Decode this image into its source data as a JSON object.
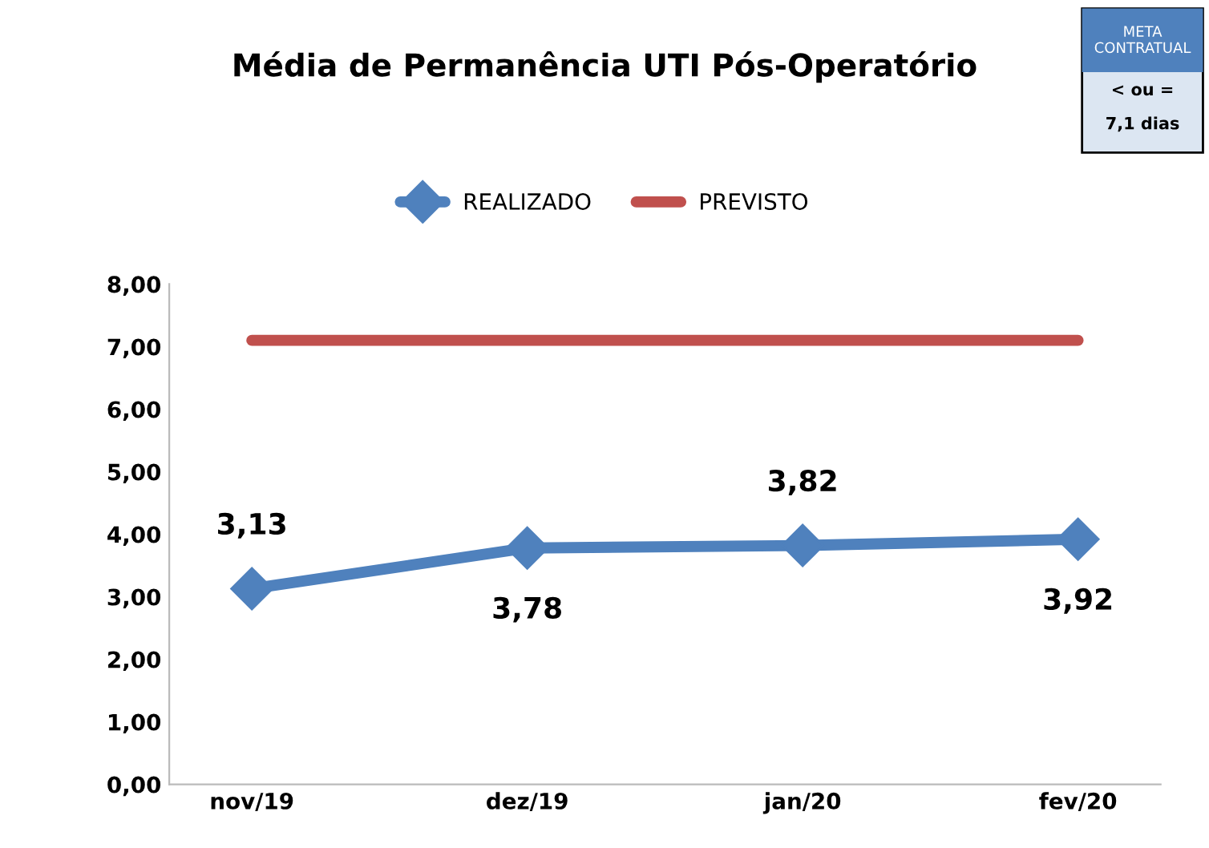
{
  "chart_data": {
    "type": "line",
    "title": "Média de Permanência UTI Pós-Operatório",
    "categories": [
      "nov/19",
      "dez/19",
      "jan/20",
      "fev/20"
    ],
    "series": [
      {
        "name": "REALIZADO",
        "color": "#4f81bd",
        "marker": "diamond",
        "values": [
          3.13,
          3.78,
          3.82,
          3.92
        ],
        "value_labels": [
          "3,13",
          "3,78",
          "3,82",
          "3,92"
        ]
      },
      {
        "name": "PREVISTO",
        "color": "#c0504d",
        "marker": "none",
        "values": [
          7.1,
          7.1,
          7.1,
          7.1
        ]
      }
    ],
    "ylim": [
      0,
      8
    ],
    "yticks": [
      {
        "value": 0,
        "label": "0,00"
      },
      {
        "value": 1,
        "label": "1,00"
      },
      {
        "value": 2,
        "label": "2,00"
      },
      {
        "value": 3,
        "label": "3,00"
      },
      {
        "value": 4,
        "label": "4,00"
      },
      {
        "value": 5,
        "label": "5,00"
      },
      {
        "value": 6,
        "label": "6,00"
      },
      {
        "value": 7,
        "label": "7,00"
      },
      {
        "value": 8,
        "label": "8,00"
      }
    ],
    "grid": false,
    "legend": "top",
    "line_style": "solid",
    "annotations": [
      "META CONTRATUAL",
      "< ou =",
      "7,1 dias"
    ]
  }
}
